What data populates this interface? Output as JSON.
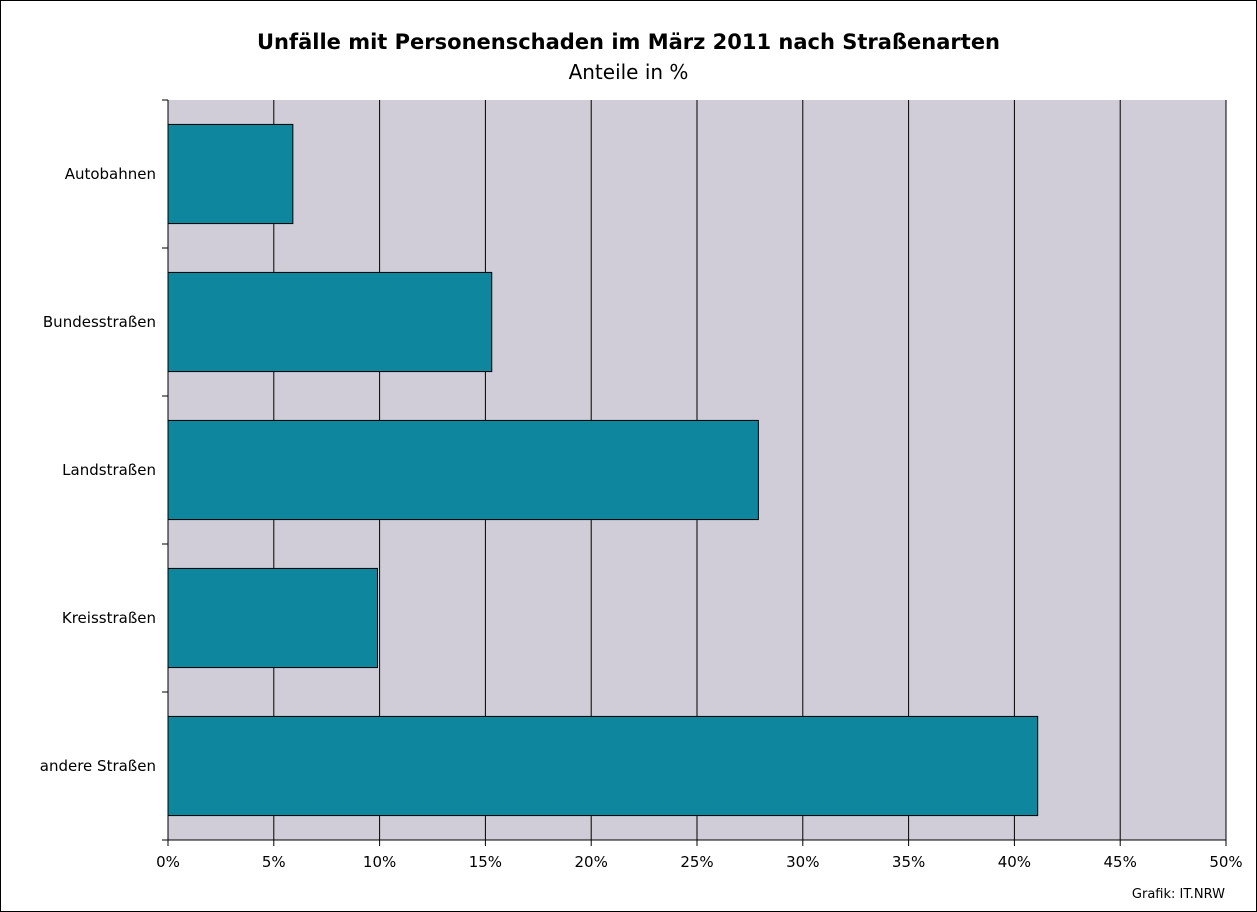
{
  "chart_data": {
    "type": "bar",
    "orientation": "horizontal",
    "title": "Unfälle mit Personenschaden im März 2011 nach Straßenarten",
    "subtitle": "Anteile in %",
    "categories": [
      "Autobahnen",
      "Bundesstraßen",
      "Landstraßen",
      "Kreisstraßen",
      "andere Straßen"
    ],
    "values": [
      5.9,
      15.3,
      27.9,
      9.9,
      41.1
    ],
    "xlim": [
      0,
      50
    ],
    "xticks": [
      0,
      5,
      10,
      15,
      20,
      25,
      30,
      35,
      40,
      45,
      50
    ],
    "xtick_labels": [
      "0%",
      "5%",
      "10%",
      "15%",
      "20%",
      "25%",
      "30%",
      "35%",
      "40%",
      "45%",
      "50%"
    ],
    "grid": "vertical",
    "legend": "none",
    "colors": {
      "bar": "#0e869e",
      "plot_background": "#d1cdd8",
      "gridline": "#000000"
    },
    "credit": "Grafik: IT.NRW"
  }
}
